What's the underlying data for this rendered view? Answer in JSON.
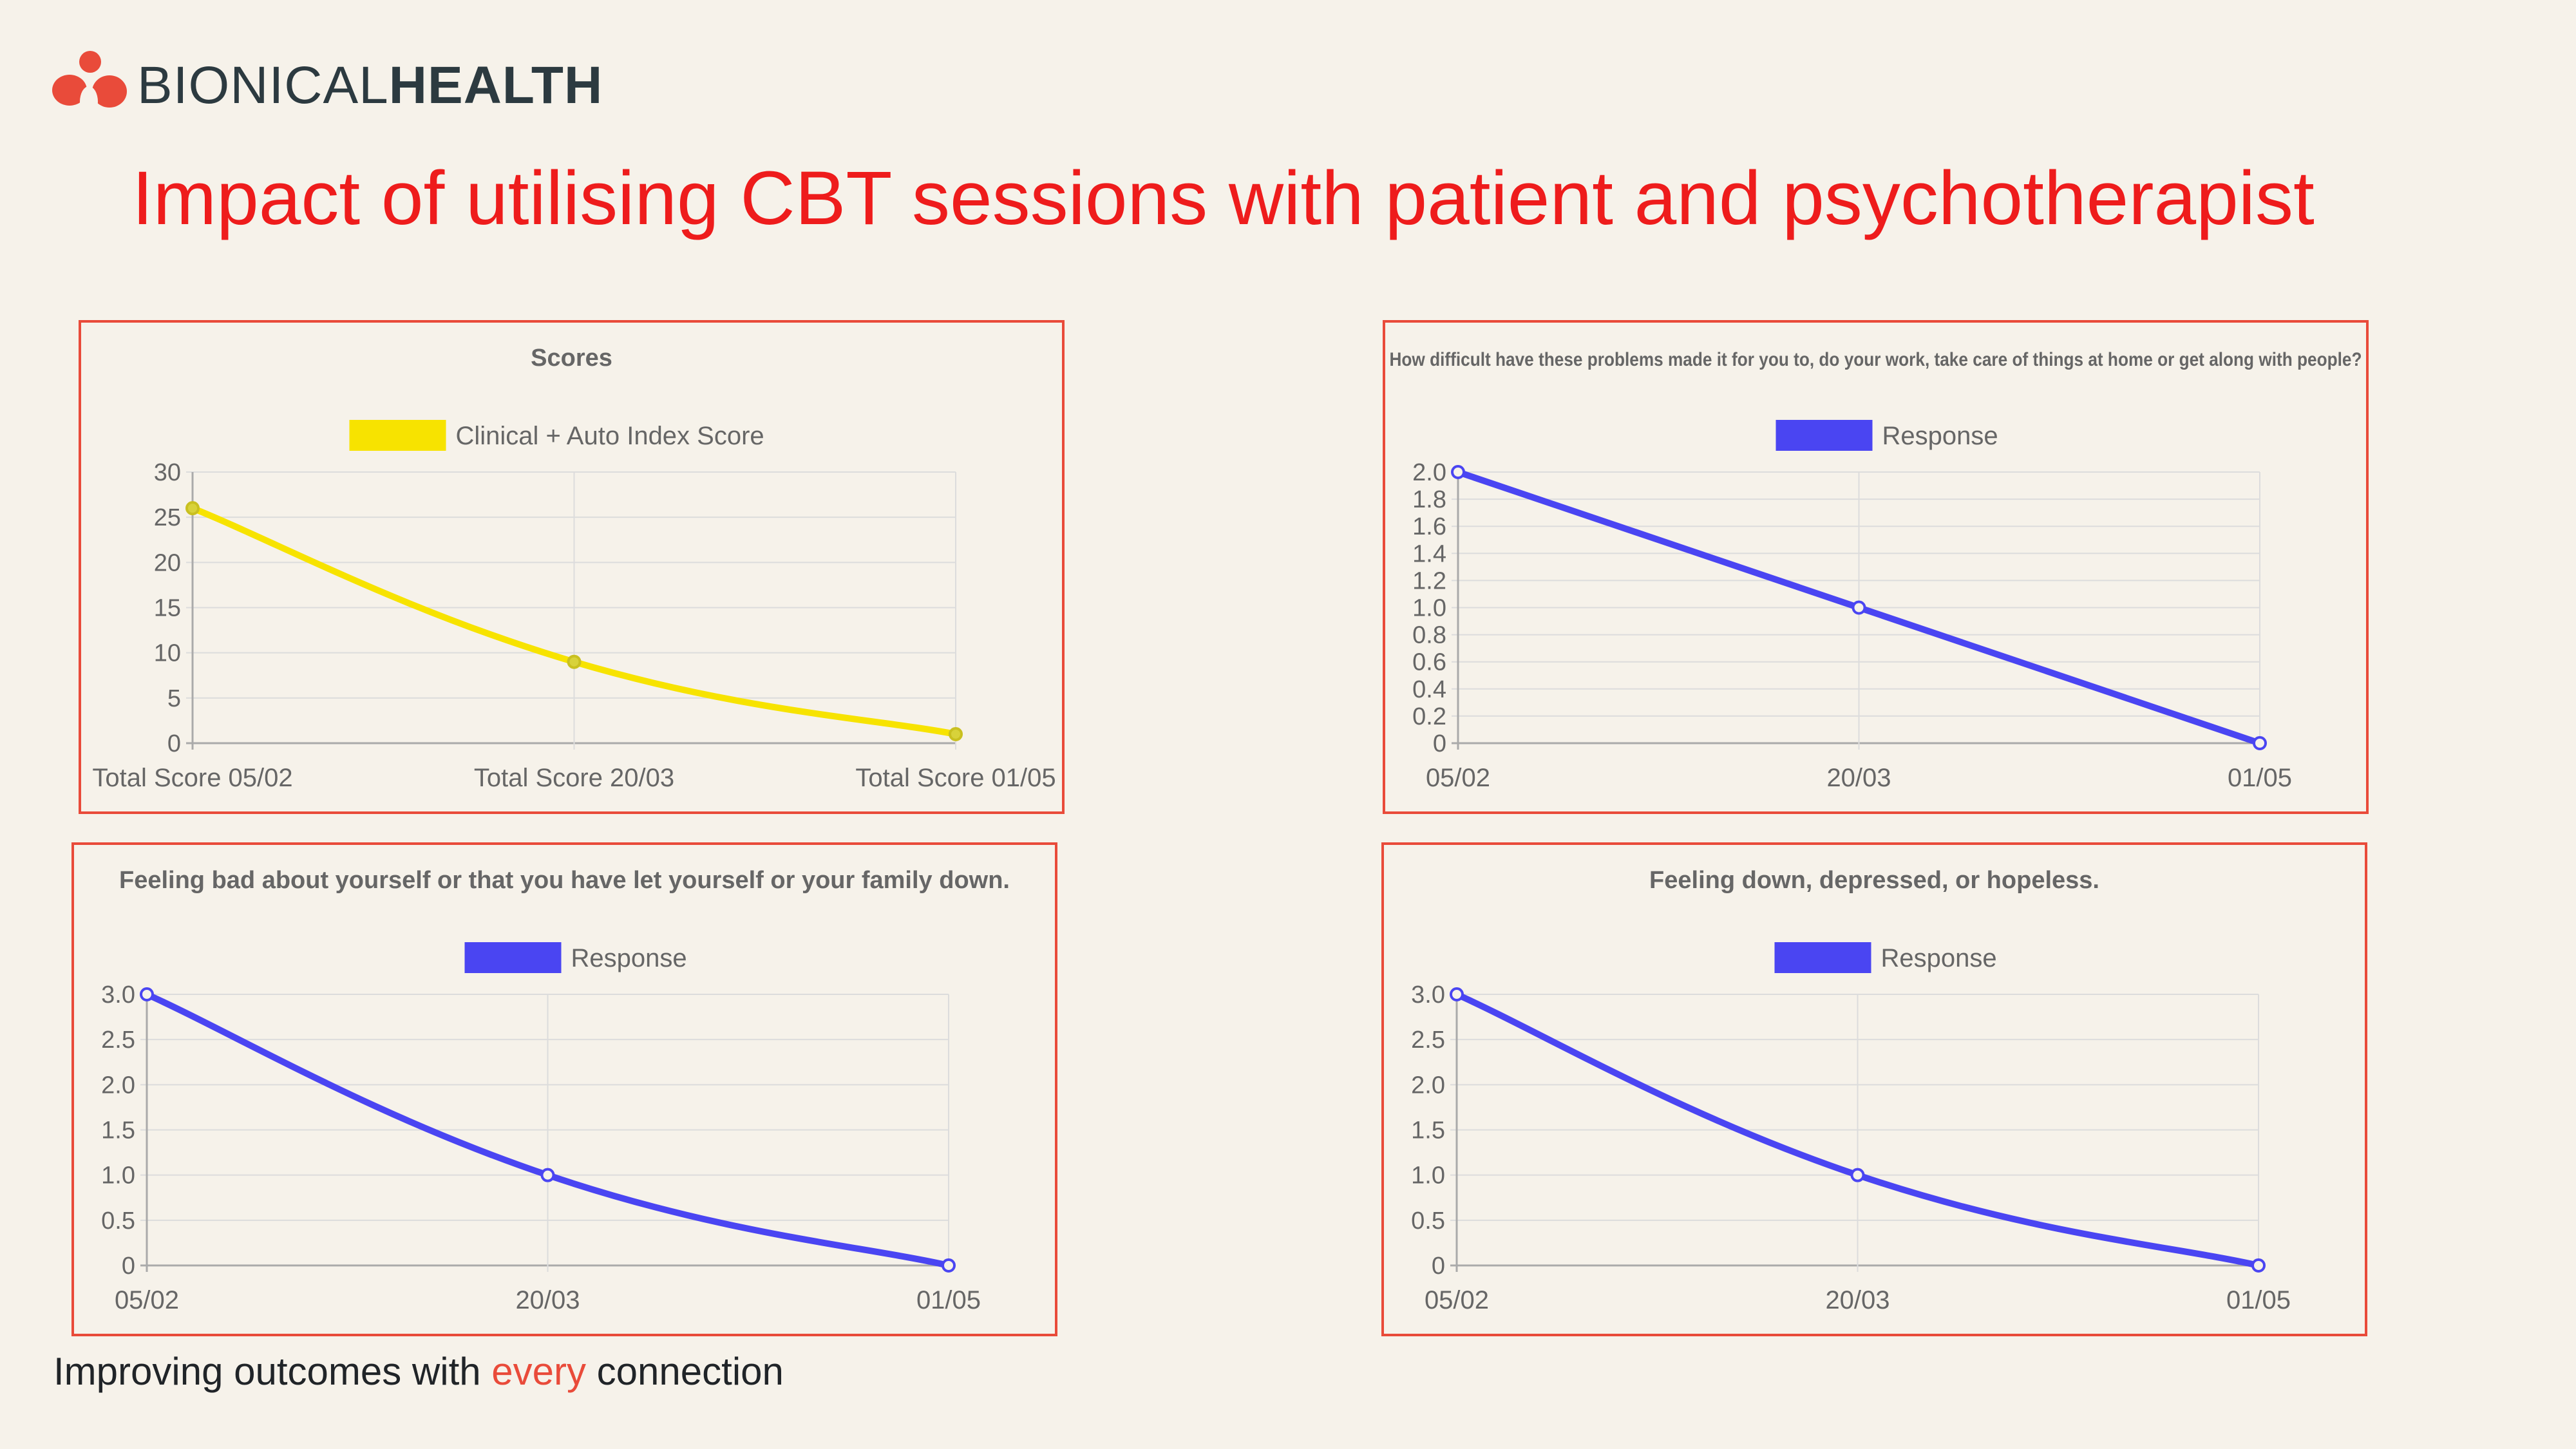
{
  "brand": {
    "name_light": "BIONICAL",
    "name_bold": "HEALTH",
    "accent": "#e94b3a"
  },
  "title": "Impact of utilising CBT sessions with patient and psychotherapist",
  "footer": {
    "prefix": "Improving outcomes with ",
    "accent": "every",
    "suffix": " connection"
  },
  "chart_data": [
    {
      "type": "line",
      "title": "Scores",
      "categories": [
        "Total Score 05/02",
        "Total Score 20/03",
        "Total Score 01/05"
      ],
      "series": [
        {
          "name": "Clinical + Auto Index Score",
          "values": [
            26,
            9,
            1
          ],
          "color": "#f7e300"
        }
      ],
      "ylim": [
        0,
        30
      ],
      "yticks": [
        "0",
        "5",
        "10",
        "15",
        "20",
        "25",
        "30"
      ],
      "xlabel": "",
      "ylabel": "",
      "grid": true,
      "legend": "top"
    },
    {
      "type": "line",
      "title": "How difficult have these problems made it for you to, do your work, take care of things at home or get along with people?",
      "categories": [
        "05/02",
        "20/03",
        "01/05"
      ],
      "series": [
        {
          "name": "Response",
          "values": [
            2,
            1,
            0
          ],
          "color": "#4a45f2"
        }
      ],
      "ylim": [
        0,
        2
      ],
      "yticks": [
        "0",
        "0.2",
        "0.4",
        "0.6",
        "0.8",
        "1.0",
        "1.2",
        "1.4",
        "1.6",
        "1.8",
        "2.0"
      ],
      "xlabel": "",
      "ylabel": "",
      "grid": true,
      "legend": "top"
    },
    {
      "type": "line",
      "title": "Feeling bad about yourself or that you have let yourself or your family down.",
      "categories": [
        "05/02",
        "20/03",
        "01/05"
      ],
      "series": [
        {
          "name": "Response",
          "values": [
            3,
            1,
            0
          ],
          "color": "#4a45f2"
        }
      ],
      "ylim": [
        0,
        3
      ],
      "yticks": [
        "0",
        "0.5",
        "1.0",
        "1.5",
        "2.0",
        "2.5",
        "3.0"
      ],
      "xlabel": "",
      "ylabel": "",
      "grid": true,
      "legend": "top"
    },
    {
      "type": "line",
      "title": "Feeling down, depressed, or hopeless.",
      "categories": [
        "05/02",
        "20/03",
        "01/05"
      ],
      "series": [
        {
          "name": "Response",
          "values": [
            3,
            1,
            0
          ],
          "color": "#4a45f2"
        }
      ],
      "ylim": [
        0,
        3
      ],
      "yticks": [
        "0",
        "0.5",
        "1.0",
        "1.5",
        "2.0",
        "2.5",
        "3.0"
      ],
      "xlabel": "",
      "ylabel": "",
      "grid": true,
      "legend": "top"
    }
  ]
}
